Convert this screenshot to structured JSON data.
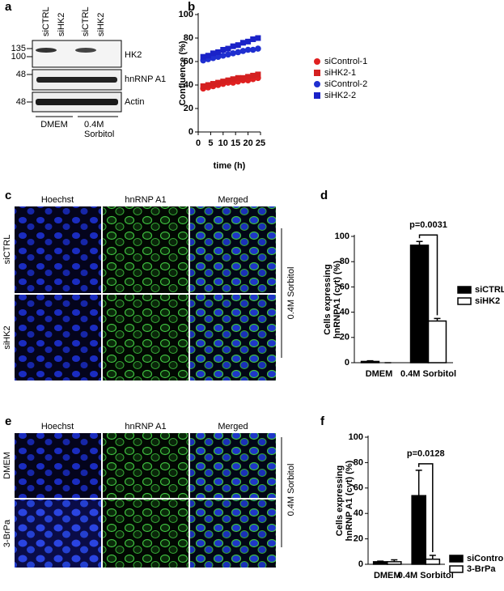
{
  "chart_data": [
    {
      "type": "scatter",
      "label": "b",
      "xlabel": "time (h)",
      "ylabel": [
        "Confluence (%)"
      ],
      "x": [
        2,
        4,
        6,
        8,
        10,
        12,
        14,
        16,
        18,
        20,
        22,
        24
      ],
      "xlim": [
        0,
        25
      ],
      "xticks": [
        0,
        5,
        10,
        15,
        20,
        25
      ],
      "ylim": [
        0,
        100
      ],
      "yticks": [
        0,
        20,
        40,
        60,
        80,
        100
      ],
      "series": [
        {
          "name": "siControl-1",
          "color": "#e02020",
          "marker": "circle",
          "values": [
            37,
            38,
            39,
            40,
            41,
            42,
            42,
            43,
            44,
            44,
            45,
            46
          ]
        },
        {
          "name": "siHK2-1",
          "color": "#d42020",
          "marker": "square",
          "values": [
            39,
            40,
            41,
            42,
            43,
            44,
            45,
            46,
            46,
            47,
            48,
            49
          ]
        },
        {
          "name": "siControl-2",
          "color": "#1f2fd0",
          "marker": "circle",
          "values": [
            61,
            62,
            63,
            64,
            65,
            66,
            67,
            68,
            69,
            70,
            70,
            71
          ]
        },
        {
          "name": "siHK2-2",
          "color": "#1a22c8",
          "marker": "square",
          "values": [
            64,
            65,
            67,
            68,
            70,
            71,
            73,
            74,
            76,
            77,
            79,
            80
          ]
        }
      ]
    },
    {
      "type": "bar",
      "label": "d",
      "ylabel": [
        "Cells expressing",
        "hnRNPA1 (cyt) (%)"
      ],
      "annotation": "p=0.0031",
      "categories": [
        "DMEM",
        "0.4M Sorbitol"
      ],
      "ylim": [
        0,
        100
      ],
      "yticks": [
        0,
        20,
        40,
        60,
        80,
        100
      ],
      "series": [
        {
          "name": "siCTRL",
          "color": "#000000",
          "values": [
            1,
            93
          ],
          "errors": [
            0.5,
            3
          ]
        },
        {
          "name": "siHK2",
          "color": "#ffffff",
          "values": [
            0,
            33
          ],
          "errors": [
            0,
            2
          ]
        }
      ]
    },
    {
      "type": "bar",
      "label": "f",
      "ylabel": [
        "Cells expressing",
        "hnRNP A1 (cyt) (%)"
      ],
      "annotation": "p=0.0128",
      "categories": [
        "DMEM",
        "0.4M Sorbitol"
      ],
      "ylim": [
        0,
        100
      ],
      "yticks": [
        0,
        20,
        40,
        60,
        80,
        100
      ],
      "series": [
        {
          "name": "siControl",
          "color": "#000000",
          "values": [
            2,
            54
          ],
          "errors": [
            0.5,
            20
          ]
        },
        {
          "name": "3-BrPa",
          "color": "#ffffff",
          "values": [
            2,
            4
          ],
          "errors": [
            1.5,
            3
          ]
        }
      ]
    }
  ],
  "panel_a": {
    "label": "a",
    "lanes": [
      "siCTRL",
      "siHK2",
      "siCTRL",
      "siHK2"
    ],
    "markers": [
      "135",
      "100",
      "48",
      "48"
    ],
    "bands": [
      "HK2",
      "hnRNP A1",
      "Actin"
    ],
    "condition_1": "DMEM",
    "condition_2": [
      "0.4M",
      "Sorbitol"
    ]
  },
  "panel_c": {
    "label": "c",
    "columns": [
      "Hoechst",
      "hnRNP A1",
      "Merged"
    ],
    "rows": [
      "siCTRL",
      "siHK2"
    ],
    "side": "0.4M Sorbitol"
  },
  "panel_e": {
    "label": "e",
    "columns": [
      "Hoechst",
      "hnRNP A1",
      "Merged"
    ],
    "rows": [
      "DMEM",
      "3-BrPa"
    ],
    "side": "0.4M Sorbitol"
  }
}
